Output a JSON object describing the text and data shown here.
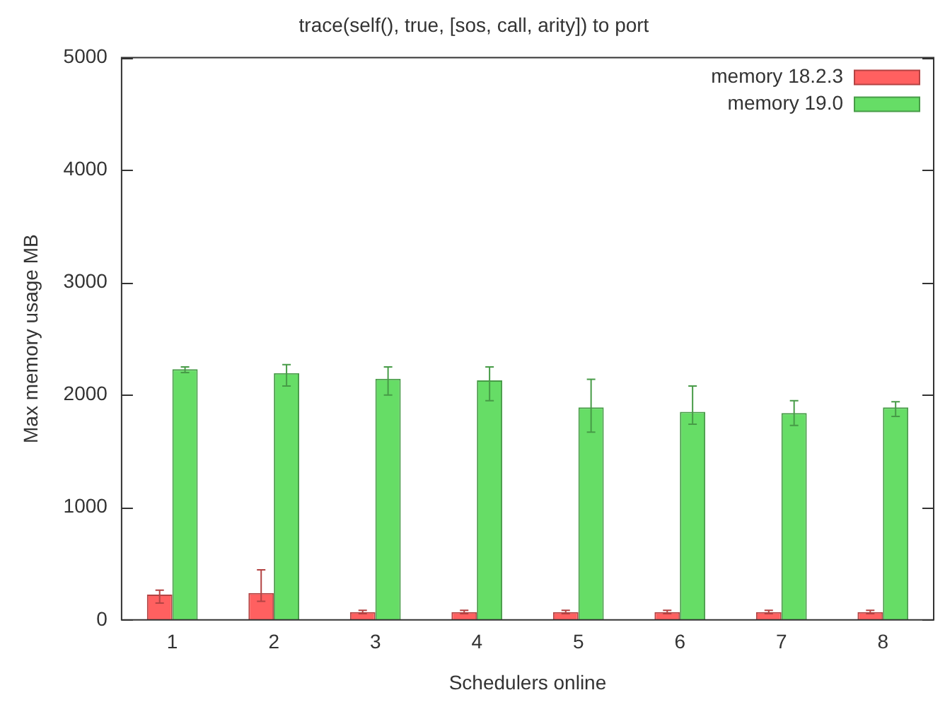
{
  "chart_data": {
    "type": "bar",
    "title": "trace(self(), true, [sos, call, arity]) to port",
    "xlabel": "Schedulers online",
    "ylabel": "Max memory usage MB",
    "categories": [
      "1",
      "2",
      "3",
      "4",
      "5",
      "6",
      "7",
      "8"
    ],
    "series": [
      {
        "name": "memory 18.2.3",
        "color": "#ff6060",
        "values": [
          225,
          240,
          70,
          70,
          70,
          70,
          70,
          70
        ],
        "errors": [
          [
            150,
            265
          ],
          [
            165,
            445
          ],
          [
            55,
            85
          ],
          [
            55,
            85
          ],
          [
            55,
            85
          ],
          [
            55,
            85
          ],
          [
            55,
            85
          ],
          [
            55,
            85
          ]
        ]
      },
      {
        "name": "memory 19.0",
        "color": "#66dd66",
        "values": [
          2230,
          2195,
          2145,
          2130,
          1890,
          1850,
          1840,
          1890
        ],
        "errors": [
          [
            2200,
            2250
          ],
          [
            2080,
            2270
          ],
          [
            2000,
            2250
          ],
          [
            1950,
            2250
          ],
          [
            1670,
            2140
          ],
          [
            1740,
            2080
          ],
          [
            1730,
            1950
          ],
          [
            1810,
            1940
          ]
        ]
      }
    ],
    "ylim": [
      0,
      5000
    ],
    "yticks": [
      0,
      1000,
      2000,
      3000,
      4000,
      5000
    ],
    "grid": false,
    "legend": "top right"
  }
}
